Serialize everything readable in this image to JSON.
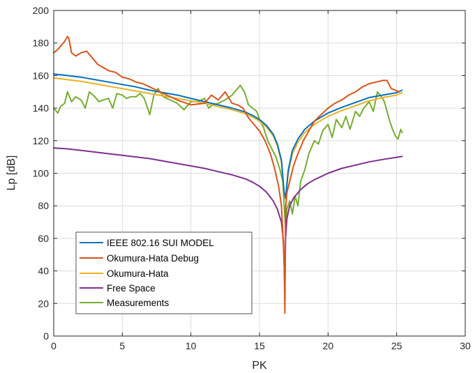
{
  "chart_data": {
    "type": "line",
    "xlabel": "PK",
    "ylabel": "Lp [dB]",
    "xlim": [
      0,
      30
    ],
    "ylim": [
      0,
      200
    ],
    "xticks": [
      0,
      5,
      10,
      15,
      20,
      25,
      30
    ],
    "yticks": [
      0,
      20,
      40,
      60,
      80,
      100,
      120,
      140,
      160,
      180,
      200
    ],
    "grid": true,
    "legend_position": "bottom-left",
    "series": [
      {
        "name": "IEEE 802.16 SUI MODEL",
        "color": "#0072BD",
        "x": [
          0,
          1,
          2,
          3,
          4,
          5,
          6,
          7,
          8,
          9,
          10,
          11,
          12,
          13,
          14,
          14.5,
          15,
          15.5,
          16,
          16.3,
          16.6,
          16.8,
          16.9,
          17.1,
          17.4,
          17.8,
          18.3,
          19,
          20,
          21,
          22,
          23,
          24,
          25,
          25.4
        ],
        "y": [
          161,
          160,
          159,
          157.5,
          156,
          154.5,
          153,
          151,
          149.5,
          148,
          146,
          144,
          142,
          140,
          137.5,
          135.5,
          133,
          129.5,
          124,
          118,
          108,
          88,
          85,
          102,
          114,
          121,
          127,
          132,
          137,
          140.5,
          143.5,
          146.5,
          148,
          149.5,
          151
        ]
      },
      {
        "name": "Okumura-Hata Debug",
        "color": "#D95319",
        "x": [
          0,
          0.3,
          0.6,
          0.8,
          1.0,
          1.1,
          1.3,
          1.6,
          2.0,
          2.4,
          2.8,
          3.2,
          3.6,
          4.0,
          4.5,
          5.0,
          5.5,
          6.0,
          6.5,
          7.0,
          8.0,
          9.0,
          10.0,
          11.0,
          11.5,
          12.0,
          12.5,
          13.0,
          13.4,
          13.8,
          14.2,
          14.6,
          15.0,
          15.4,
          15.8,
          16.1,
          16.4,
          16.6,
          16.8,
          16.85,
          16.9,
          17.0,
          17.2,
          17.5,
          17.8,
          18.2,
          18.6,
          19.0,
          19.5,
          20.0,
          20.5,
          21.0,
          21.5,
          22.0,
          22.5,
          23.0,
          23.5,
          24.0,
          24.3,
          24.6,
          24.9,
          25.2
        ],
        "y": [
          174,
          176,
          179,
          181,
          184,
          183,
          174,
          172,
          174,
          175,
          171,
          167,
          165,
          163,
          162,
          159,
          158,
          156,
          155,
          153,
          149,
          145,
          142,
          143,
          148,
          145,
          150,
          143,
          142,
          140,
          134,
          130,
          126,
          120,
          112,
          103,
          92,
          80,
          46,
          14,
          78,
          88,
          95,
          105,
          112,
          120,
          126,
          132,
          136,
          140,
          143,
          145,
          148,
          150,
          153,
          155,
          156,
          157,
          157,
          152,
          151,
          150
        ]
      },
      {
        "name": "Okumura-Hata",
        "color": "#EDB120",
        "x": [
          0,
          1,
          2,
          3,
          4,
          5,
          6,
          7,
          8,
          9,
          10,
          11,
          12,
          13,
          14,
          14.5,
          15,
          15.5,
          16,
          16.3,
          16.6,
          16.8,
          16.9,
          17.1,
          17.4,
          17.8,
          18.3,
          19,
          20,
          21,
          22,
          23,
          24,
          25,
          25.4
        ],
        "y": [
          158.5,
          157.5,
          156.5,
          155,
          153.5,
          152,
          150.5,
          149,
          147.5,
          146,
          144.5,
          143,
          141,
          139,
          136.5,
          134.5,
          132,
          128.5,
          123,
          117,
          107,
          87,
          84,
          100,
          112,
          119,
          125,
          130,
          135,
          138.5,
          141.5,
          144.5,
          146.5,
          148,
          149.5
        ]
      },
      {
        "name": "Free Space",
        "color": "#7E2F8E",
        "x": [
          0,
          1,
          2,
          3,
          4,
          5,
          6,
          7,
          8,
          9,
          10,
          11,
          12,
          13,
          14,
          14.5,
          15,
          15.5,
          16,
          16.3,
          16.6,
          16.75,
          16.85,
          16.9,
          17.0,
          17.2,
          17.5,
          18.0,
          18.5,
          19,
          20,
          21,
          22,
          23,
          24,
          25,
          25.4
        ],
        "y": [
          115.5,
          115,
          114,
          113,
          112,
          111,
          110,
          109,
          107.5,
          106,
          104.5,
          103,
          101,
          99,
          96.5,
          94.5,
          92,
          88.5,
          83,
          78,
          70,
          58,
          28,
          60,
          72,
          80,
          85,
          90,
          93.5,
          96,
          100,
          103,
          105,
          107,
          108.5,
          109.8,
          110.3
        ]
      },
      {
        "name": "Measurements",
        "color": "#77AC30",
        "x": [
          0.0,
          0.3,
          0.5,
          0.8,
          1.0,
          1.3,
          1.6,
          2.0,
          2.3,
          2.6,
          3.0,
          3.3,
          3.6,
          4.0,
          4.3,
          4.6,
          5.0,
          5.3,
          5.6,
          6.0,
          6.3,
          6.6,
          7.0,
          7.3,
          7.6,
          8.0,
          8.5,
          9.0,
          9.5,
          10.0,
          10.5,
          11.0,
          11.3,
          11.6,
          12.0,
          12.5,
          13.0,
          13.3,
          13.6,
          13.9,
          14.2,
          14.5,
          14.8,
          15.0,
          15.3,
          15.6,
          15.9,
          16.2,
          16.5,
          16.7,
          16.9,
          17.0,
          17.2,
          17.4,
          17.6,
          17.8,
          18.0,
          18.3,
          18.6,
          19.0,
          19.3,
          19.6,
          20.0,
          20.3,
          20.6,
          21.0,
          21.3,
          21.6,
          22.0,
          22.3,
          22.6,
          23.0,
          23.3,
          23.6,
          23.9,
          24.1,
          24.3,
          24.5,
          24.7,
          24.9,
          25.1,
          25.3,
          25.4
        ],
        "y": [
          140,
          137,
          141,
          143,
          150,
          144,
          147,
          145,
          140,
          150,
          147,
          144,
          145,
          146,
          140,
          149,
          148,
          146,
          147,
          147,
          149,
          146,
          136,
          148,
          152,
          147,
          145,
          143,
          139,
          144,
          144,
          146,
          140,
          142,
          143,
          145,
          148,
          151,
          154,
          150,
          142,
          140,
          138,
          133,
          128,
          120,
          115,
          110,
          102,
          95,
          66,
          78,
          83,
          75,
          86,
          80,
          95,
          102,
          112,
          120,
          118,
          126,
          130,
          122,
          133,
          128,
          135,
          127,
          138,
          135,
          140,
          144,
          138,
          150,
          147,
          144,
          138,
          132,
          127,
          123,
          121,
          127,
          125
        ]
      }
    ]
  }
}
